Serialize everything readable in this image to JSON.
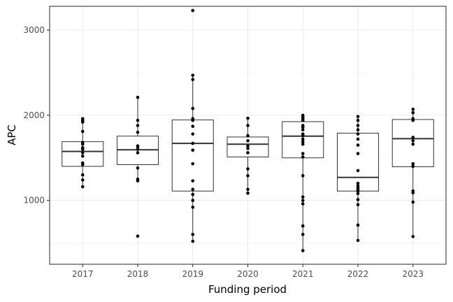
{
  "chart_data": {
    "type": "boxplot",
    "xlabel": "Funding period",
    "ylabel": "APC",
    "ylim": [
      250,
      3280
    ],
    "y_ticks": [
      1000,
      2000,
      3000
    ],
    "y_minor_ticks": [
      500,
      1500,
      2500
    ],
    "grid": true,
    "categories": [
      "2017",
      "2018",
      "2019",
      "2020",
      "2021",
      "2022",
      "2023"
    ],
    "boxes": [
      {
        "category": "2017",
        "min": 1160,
        "q1": 1400,
        "median": 1575,
        "q3": 1690,
        "max": 1960
      },
      {
        "category": "2018",
        "min": 1230,
        "q1": 1420,
        "median": 1595,
        "q3": 1755,
        "max": 2210
      },
      {
        "category": "2019",
        "min": 520,
        "q1": 1110,
        "median": 1670,
        "q3": 1945,
        "max": 2470
      },
      {
        "category": "2020",
        "min": 1085,
        "q1": 1510,
        "median": 1660,
        "q3": 1745,
        "max": 1965
      },
      {
        "category": "2021",
        "min": 410,
        "q1": 1500,
        "median": 1755,
        "q3": 1925,
        "max": 2000
      },
      {
        "category": "2022",
        "min": 530,
        "q1": 1110,
        "median": 1270,
        "q3": 1790,
        "max": 1985
      },
      {
        "category": "2023",
        "min": 575,
        "q1": 1395,
        "median": 1725,
        "q3": 1950,
        "max": 2070
      }
    ],
    "points": [
      {
        "category": "2017",
        "values": [
          1160,
          1240,
          1300,
          1420,
          1440,
          1520,
          1560,
          1600,
          1620,
          1660,
          1680,
          1810,
          1920,
          1940,
          1960
        ]
      },
      {
        "category": "2018",
        "values": [
          580,
          1230,
          1250,
          1380,
          1560,
          1600,
          1630,
          1640,
          1800,
          1880,
          1940,
          2210
        ]
      },
      {
        "category": "2019",
        "values": [
          520,
          600,
          920,
          1000,
          1070,
          1130,
          1230,
          1430,
          1590,
          1670,
          1780,
          1870,
          1940,
          1960,
          2080,
          2420,
          2470,
          3230
        ]
      },
      {
        "category": "2020",
        "values": [
          1085,
          1130,
          1290,
          1370,
          1560,
          1610,
          1640,
          1700,
          1760,
          1880,
          1965
        ]
      },
      {
        "category": "2021",
        "values": [
          410,
          600,
          700,
          960,
          1000,
          1040,
          1290,
          1510,
          1550,
          1660,
          1690,
          1720,
          1760,
          1780,
          1830,
          1860,
          1880,
          1940,
          1960,
          1980,
          2000
        ]
      },
      {
        "category": "2022",
        "values": [
          530,
          710,
          950,
          1010,
          1080,
          1110,
          1130,
          1150,
          1170,
          1200,
          1350,
          1550,
          1650,
          1720,
          1780,
          1830,
          1880,
          1940,
          1985
        ]
      },
      {
        "category": "2023",
        "values": [
          575,
          980,
          1090,
          1110,
          1400,
          1430,
          1660,
          1700,
          1740,
          1940,
          1960,
          2030,
          2070
        ]
      }
    ]
  }
}
